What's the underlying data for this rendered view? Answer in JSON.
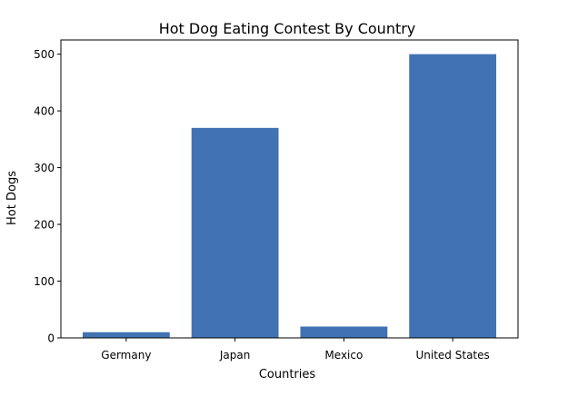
{
  "chart_data": {
    "type": "bar",
    "title": "Hot Dog Eating Contest By Country",
    "xlabel": "Countries",
    "ylabel": "Hot Dogs",
    "categories": [
      "Germany",
      "Japan",
      "Mexico",
      "United States"
    ],
    "values": [
      10,
      370,
      20,
      500
    ],
    "ylim": [
      0,
      525
    ],
    "yticks": [
      0,
      100,
      200,
      300,
      400,
      500
    ],
    "bar_color": "#4172b4",
    "grid": false,
    "legend": "none"
  }
}
